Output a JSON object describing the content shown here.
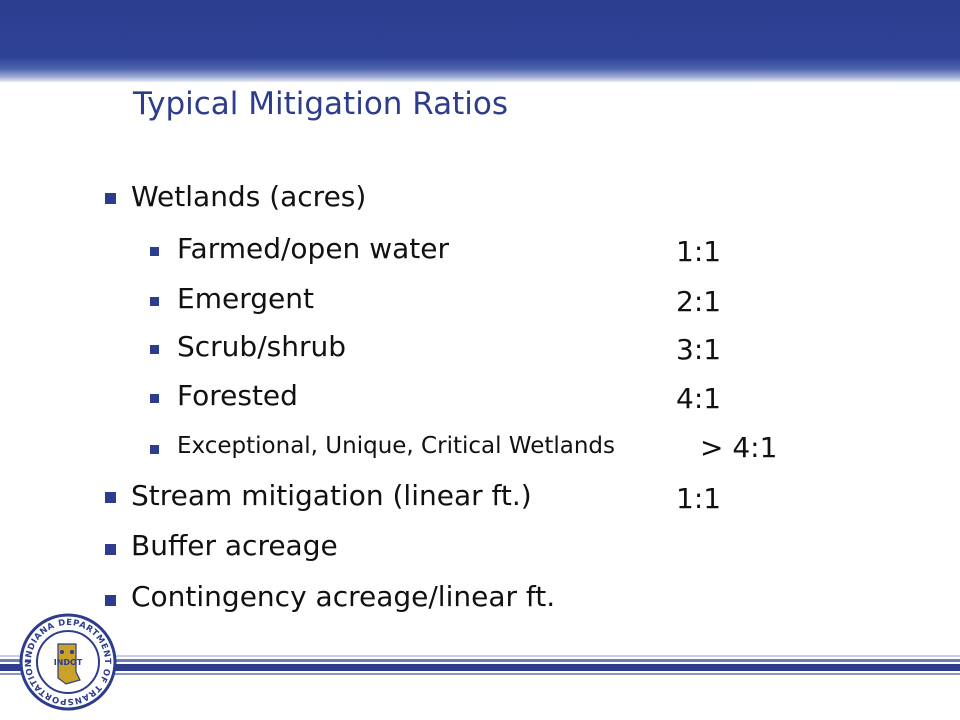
{
  "slide": {
    "title": "Typical Mitigation Ratios",
    "items": [
      {
        "level": 1,
        "label": "Wetlands (acres)"
      },
      {
        "level": 2,
        "label": "Farmed/open water",
        "ratio": "1:1"
      },
      {
        "level": 2,
        "label": "Emergent",
        "ratio": "2:1"
      },
      {
        "level": 2,
        "label": "Scrub/shrub",
        "ratio": "3:1"
      },
      {
        "level": 2,
        "label": "Forested",
        "ratio": "4:1"
      },
      {
        "level": 2,
        "label": "Exceptional, Unique, Critical Wetlands",
        "ratio": "> 4:1"
      },
      {
        "level": 1,
        "label": "Stream mitigation (linear ft.)",
        "ratio": "1:1"
      },
      {
        "level": 1,
        "label": "Buffer acreage"
      },
      {
        "level": 1,
        "label": "Contingency acreage/linear ft."
      }
    ]
  },
  "seal": {
    "ring_text": "INDIANA DEPARTMENT OF TRANSPORTATION",
    "center_text": "INDOT"
  },
  "colors": {
    "accent": "#2d3c8c",
    "band": "#2f4396"
  }
}
